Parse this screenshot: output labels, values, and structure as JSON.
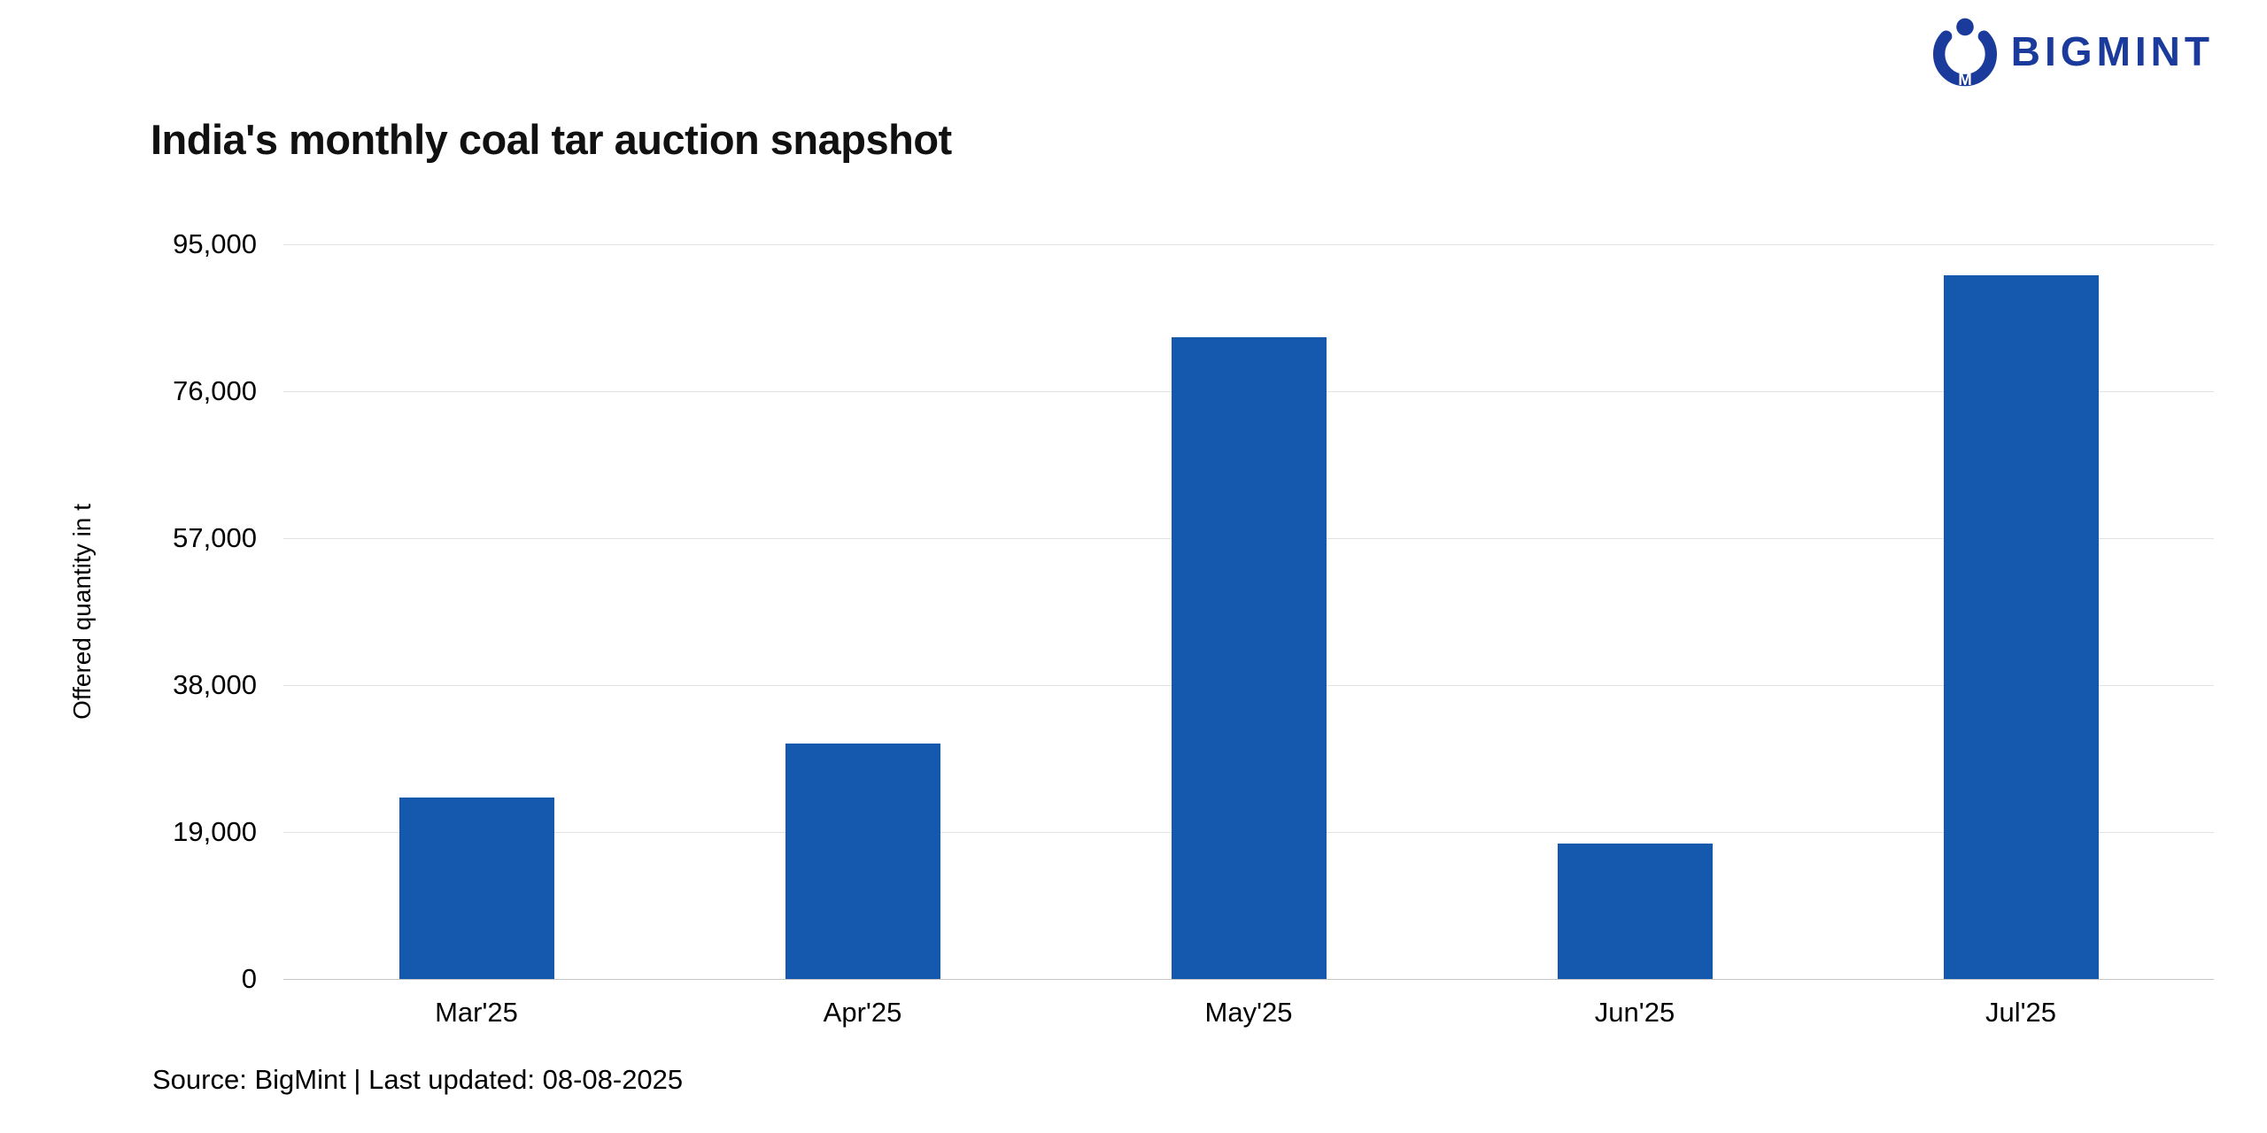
{
  "logo": {
    "brand": "BIGMINT",
    "color": "#1a3a9c"
  },
  "title": "India's monthly coal tar auction snapshot",
  "source_line": "Source: BigMint | Last updated: 08-08-2025",
  "chart_data": {
    "type": "bar",
    "title": "India's monthly coal tar auction snapshot",
    "categories": [
      "Mar'25",
      "Apr'25",
      "May'25",
      "Jun'25",
      "Jul'25"
    ],
    "values": [
      23500,
      30500,
      83000,
      17500,
      91000
    ],
    "xlabel": "",
    "ylabel": "Offered quantity in t",
    "ylim": [
      0,
      95000
    ],
    "yticks": [
      0,
      19000,
      38000,
      57000,
      76000,
      95000
    ],
    "ytick_labels": [
      "0",
      "19,000",
      "38,000",
      "57,000",
      "76,000",
      "95,000"
    ],
    "grid": true,
    "legend": false,
    "bar_color": "#1459ae"
  }
}
